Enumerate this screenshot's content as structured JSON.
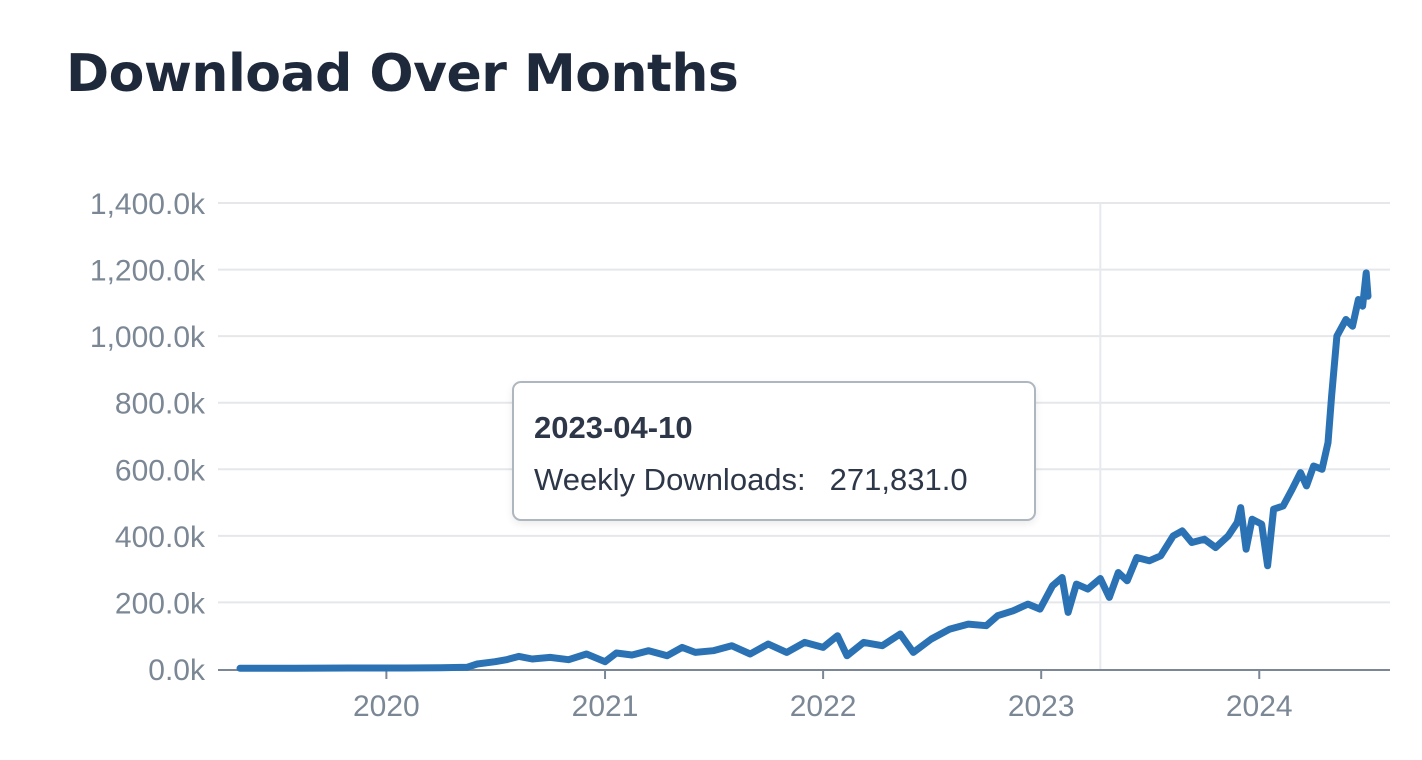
{
  "header": {
    "title": "Download Over Months"
  },
  "tooltip": {
    "date": "2023-04-10",
    "label": "Weekly Downloads:",
    "value": "271,831.0"
  },
  "colors": {
    "line": "#2b72b4",
    "grid": "#e5e7eb",
    "axis": "#7b8794",
    "title": "#1e293b",
    "crosshair": "#e6e9ee"
  },
  "chart_data": {
    "type": "line",
    "title": "Download Over Months",
    "xlabel": "",
    "ylabel": "",
    "xlim": [
      "2019-05-01",
      "2024-07-01"
    ],
    "ylim": [
      0,
      1400000
    ],
    "grid": "horizontal",
    "y_ticks": [
      {
        "value": 0,
        "label": "0.0k"
      },
      {
        "value": 200000,
        "label": "200.0k"
      },
      {
        "value": 400000,
        "label": "400.0k"
      },
      {
        "value": 600000,
        "label": "600.0k"
      },
      {
        "value": 800000,
        "label": "800.0k"
      },
      {
        "value": 1000000,
        "label": "1,000.0k"
      },
      {
        "value": 1200000,
        "label": "1,200.0k"
      },
      {
        "value": 1400000,
        "label": "1,400.0k"
      }
    ],
    "x_ticks": [
      {
        "value": "2020-01-01",
        "label": "2020"
      },
      {
        "value": "2021-01-01",
        "label": "2021"
      },
      {
        "value": "2022-01-01",
        "label": "2022"
      },
      {
        "value": "2023-01-01",
        "label": "2023"
      },
      {
        "value": "2024-01-01",
        "label": "2024"
      }
    ],
    "highlight": {
      "x": "2023-04-10",
      "y": 271831
    },
    "series": [
      {
        "points": [
          [
            "2019-05-01",
            2000
          ],
          [
            "2019-08-01",
            2000
          ],
          [
            "2019-11-01",
            3000
          ],
          [
            "2020-02-01",
            3000
          ],
          [
            "2020-04-01",
            4000
          ],
          [
            "2020-05-15",
            5000
          ],
          [
            "2020-06-01",
            15000
          ],
          [
            "2020-07-01",
            22000
          ],
          [
            "2020-07-20",
            28000
          ],
          [
            "2020-08-10",
            38000
          ],
          [
            "2020-09-01",
            30000
          ],
          [
            "2020-10-01",
            35000
          ],
          [
            "2020-11-01",
            28000
          ],
          [
            "2020-12-01",
            45000
          ],
          [
            "2021-01-01",
            22000
          ],
          [
            "2021-01-20",
            48000
          ],
          [
            "2021-02-15",
            42000
          ],
          [
            "2021-03-15",
            55000
          ],
          [
            "2021-04-15",
            40000
          ],
          [
            "2021-05-10",
            65000
          ],
          [
            "2021-06-01",
            50000
          ],
          [
            "2021-07-01",
            55000
          ],
          [
            "2021-08-01",
            70000
          ],
          [
            "2021-09-01",
            45000
          ],
          [
            "2021-10-01",
            75000
          ],
          [
            "2021-11-01",
            50000
          ],
          [
            "2021-12-01",
            80000
          ],
          [
            "2022-01-01",
            65000
          ],
          [
            "2022-01-25",
            100000
          ],
          [
            "2022-02-10",
            40000
          ],
          [
            "2022-03-10",
            80000
          ],
          [
            "2022-04-10",
            70000
          ],
          [
            "2022-05-10",
            105000
          ],
          [
            "2022-06-01",
            50000
          ],
          [
            "2022-07-01",
            90000
          ],
          [
            "2022-08-01",
            120000
          ],
          [
            "2022-09-01",
            135000
          ],
          [
            "2022-10-01",
            130000
          ],
          [
            "2022-10-20",
            160000
          ],
          [
            "2022-11-15",
            175000
          ],
          [
            "2022-12-10",
            195000
          ],
          [
            "2022-12-30",
            180000
          ],
          [
            "2023-01-20",
            250000
          ],
          [
            "2023-02-05",
            275000
          ],
          [
            "2023-02-15",
            170000
          ],
          [
            "2023-03-01",
            255000
          ],
          [
            "2023-03-20",
            240000
          ],
          [
            "2023-04-10",
            271831
          ],
          [
            "2023-04-25",
            215000
          ],
          [
            "2023-05-10",
            290000
          ],
          [
            "2023-05-25",
            265000
          ],
          [
            "2023-06-10",
            335000
          ],
          [
            "2023-07-01",
            325000
          ],
          [
            "2023-07-20",
            340000
          ],
          [
            "2023-08-10",
            400000
          ],
          [
            "2023-08-25",
            415000
          ],
          [
            "2023-09-10",
            380000
          ],
          [
            "2023-10-01",
            390000
          ],
          [
            "2023-10-20",
            365000
          ],
          [
            "2023-11-10",
            400000
          ],
          [
            "2023-11-25",
            440000
          ],
          [
            "2023-12-01",
            485000
          ],
          [
            "2023-12-10",
            360000
          ],
          [
            "2023-12-20",
            450000
          ],
          [
            "2024-01-05",
            435000
          ],
          [
            "2024-01-15",
            310000
          ],
          [
            "2024-01-25",
            480000
          ],
          [
            "2024-02-10",
            490000
          ],
          [
            "2024-02-25",
            540000
          ],
          [
            "2024-03-10",
            590000
          ],
          [
            "2024-03-20",
            550000
          ],
          [
            "2024-04-01",
            610000
          ],
          [
            "2024-04-15",
            600000
          ],
          [
            "2024-04-25",
            680000
          ],
          [
            "2024-05-01",
            820000
          ],
          [
            "2024-05-10",
            1000000
          ],
          [
            "2024-05-25",
            1050000
          ],
          [
            "2024-06-05",
            1030000
          ],
          [
            "2024-06-15",
            1110000
          ],
          [
            "2024-06-22",
            1090000
          ],
          [
            "2024-06-28",
            1190000
          ],
          [
            "2024-07-01",
            1120000
          ]
        ]
      }
    ]
  }
}
